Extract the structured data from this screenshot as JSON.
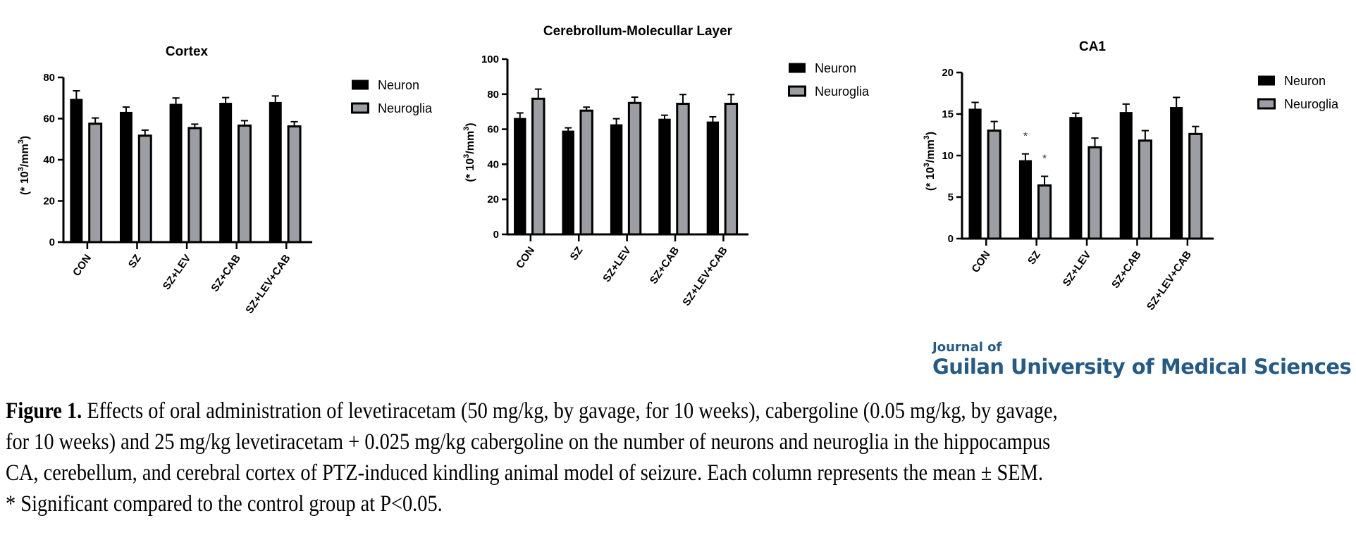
{
  "chart_data": [
    {
      "type": "bar",
      "title": "Cortex",
      "xlabel": "",
      "ylabel": "(* 10³/mm³)",
      "ylim": [
        0,
        80
      ],
      "yticks": [
        0,
        20,
        40,
        60,
        80
      ],
      "categories": [
        "CON",
        "SZ",
        "SZ+LEV",
        "SZ+CAB",
        "SZ+LEV+CAB"
      ],
      "series": [
        {
          "name": "Neuron",
          "color": "#000000",
          "values": [
            69.4,
            63.1,
            67.0,
            67.5,
            67.9
          ],
          "sem": [
            4.1,
            2.5,
            3.0,
            2.7,
            3.1
          ],
          "significance": [
            "",
            "",
            "",
            "",
            ""
          ]
        },
        {
          "name": "Neuroglia",
          "color": "#9d9ea3",
          "values": [
            57.5,
            51.7,
            55.4,
            56.6,
            56.2
          ],
          "sem": [
            2.8,
            2.7,
            1.9,
            2.4,
            2.3
          ],
          "significance": [
            "",
            "",
            "",
            "",
            ""
          ]
        }
      ],
      "legend": "right",
      "grid": false
    },
    {
      "type": "bar",
      "title": "Cerebrollum-Molecullar Layer",
      "xlabel": "",
      "ylabel": "(* 10³/mm³)",
      "ylim": [
        0,
        100
      ],
      "yticks": [
        0,
        20,
        40,
        60,
        80,
        100
      ],
      "categories": [
        "CON",
        "SZ",
        "SZ+LEV",
        "SZ+CAB",
        "SZ+LEV+CAB"
      ],
      "series": [
        {
          "name": "Neuron",
          "color": "#000000",
          "values": [
            66.2,
            59.0,
            62.6,
            65.8,
            64.2
          ],
          "sem": [
            3.1,
            1.8,
            3.4,
            2.2,
            2.9
          ],
          "significance": [
            "",
            "",
            "",
            "",
            ""
          ]
        },
        {
          "name": "Neuroglia",
          "color": "#9d9ea3",
          "values": [
            77.4,
            70.6,
            75.0,
            74.5,
            74.5
          ],
          "sem": [
            5.5,
            2.0,
            3.3,
            5.3,
            5.3
          ],
          "significance": [
            "",
            "",
            "",
            "",
            ""
          ]
        }
      ],
      "legend": "right",
      "grid": false
    },
    {
      "type": "bar",
      "title": "CA1",
      "xlabel": "",
      "ylabel": "(* 10³/mm³)",
      "ylim": [
        0,
        20
      ],
      "yticks": [
        0,
        5,
        10,
        15,
        20
      ],
      "categories": [
        "CON",
        "SZ",
        "SZ+LEV",
        "SZ+CAB",
        "SZ+LEV+CAB"
      ],
      "series": [
        {
          "name": "Neuron",
          "color": "#000000",
          "values": [
            15.6,
            9.4,
            14.6,
            15.2,
            15.8
          ],
          "sem": [
            0.8,
            0.8,
            0.5,
            1.0,
            1.2
          ],
          "significance": [
            "",
            "*",
            "",
            "",
            ""
          ]
        },
        {
          "name": "Neuroglia",
          "color": "#9d9ea3",
          "values": [
            13.0,
            6.4,
            11.0,
            11.8,
            12.6
          ],
          "sem": [
            1.1,
            1.1,
            1.1,
            1.2,
            0.9
          ],
          "significance": [
            "",
            "*",
            "",
            "",
            ""
          ]
        }
      ],
      "legend": "right",
      "grid": false
    }
  ],
  "logo": {
    "line1": "Journal of",
    "line2": "Guilan University of Medical Sciences",
    "color": "#245a86"
  },
  "caption": {
    "label": "Figure 1.",
    "line1": " Effects of oral administration of levetiracetam (50 mg/kg, by gavage, for 10 weeks), cabergoline (0.05 mg/kg, by gavage,",
    "line2": "for 10 weeks) and 25 mg/kg levetiracetam + 0.025 mg/kg cabergoline on the number of neurons and neuroglia in the hippocampus",
    "line3": "CA, cerebellum, and cerebral cortex of PTZ-induced kindling animal model of seizure. Each column represents the mean ± SEM.",
    "line4": "* Significant compared to the control group at P<0.05."
  }
}
